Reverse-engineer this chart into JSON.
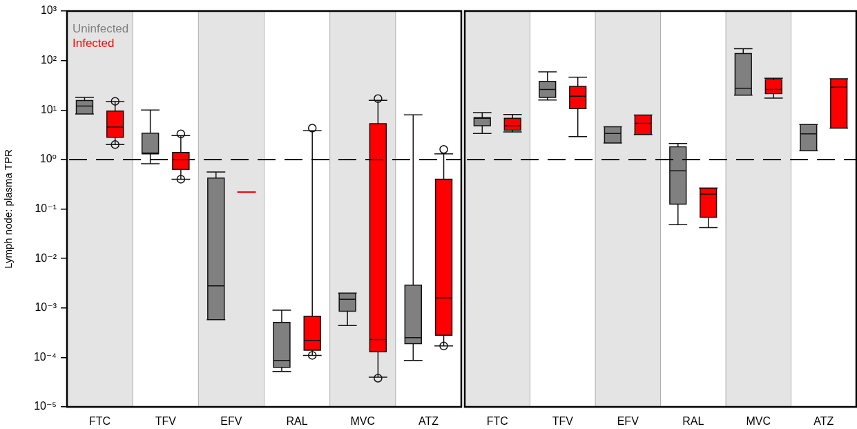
{
  "chart_data": [
    {
      "type": "box",
      "categories": [
        "FTC",
        "TFV",
        "EFV",
        "RAL",
        "MVC",
        "ATZ"
      ],
      "ylabel": "Lymph node: plasma TPR",
      "log": true,
      "ylim": [
        1e-05,
        1000
      ],
      "yticks": [
        {
          "value": 1e-05,
          "label": "10⁻⁵"
        },
        {
          "value": 0.0001,
          "label": "10⁻⁴"
        },
        {
          "value": 0.001,
          "label": "10⁻³"
        },
        {
          "value": 0.01,
          "label": "10⁻²"
        },
        {
          "value": 0.1,
          "label": "10⁻¹"
        },
        {
          "value": 1,
          "label": "10⁰"
        },
        {
          "value": 10,
          "label": "10¹"
        },
        {
          "value": 100,
          "label": "10²"
        },
        {
          "value": 1000,
          "label": "10³"
        }
      ],
      "legend": "top left",
      "ref_lines": [
        {
          "axis": "y",
          "value": 1,
          "line_style": "dashed",
          "color": "#000000"
        }
      ],
      "bands": [
        {
          "axis": "x",
          "from": "FTC",
          "to": "FTC",
          "color": "#e4e4e4"
        },
        {
          "axis": "x",
          "from": "EFV",
          "to": "EFV",
          "color": "#e4e4e4"
        },
        {
          "axis": "x",
          "from": "MVC",
          "to": "MVC",
          "color": "#e4e4e4"
        }
      ],
      "series": [
        {
          "name": "Uninfected",
          "color": "#808080",
          "boxes": [
            {
              "low": 8.3,
              "q1": 8.3,
              "median": 12,
              "q3": 15.5,
              "high": 18
            },
            {
              "low": 0.82,
              "q1": 1.3,
              "median": 1.35,
              "q3": 3.4,
              "high": 10
            },
            {
              "low": 0.00058,
              "q1": 0.00058,
              "median": 0.0028,
              "q3": 0.42,
              "high": 0.56
            },
            {
              "low": 5.2e-05,
              "q1": 6.3e-05,
              "median": 8.7e-05,
              "q3": 0.00051,
              "high": 0.0009
            },
            {
              "low": 0.00044,
              "q1": 0.00086,
              "median": 0.0015,
              "q3": 0.002,
              "high": 0.002
            },
            {
              "low": 8.7e-05,
              "q1": 0.00019,
              "median": 0.00025,
              "q3": 0.0029,
              "high": 8
            }
          ]
        },
        {
          "name": "Infected",
          "color": "#ff0000",
          "boxes": [
            {
              "low": 2,
              "q1": 2.8,
              "median": 4.5,
              "q3": 9.5,
              "high": 14.8,
              "outliers": [
                2,
                15
              ]
            },
            {
              "low": 0.4,
              "q1": 0.63,
              "median": 1,
              "q3": 1.38,
              "high": 3.05,
              "outliers": [
                0.4,
                3.3
              ]
            },
            {
              "low": 0.22,
              "q1": 0.22,
              "median": 0.22,
              "q3": 0.22,
              "high": 0.22
            },
            {
              "low": 0.00011,
              "q1": 0.00014,
              "median": 0.00022,
              "q3": 0.00068,
              "high": 3.8,
              "outliers": [
                0.00011,
                4.3
              ]
            },
            {
              "low": 4e-05,
              "q1": 0.00013,
              "median": 0.00023,
              "q3": 5.3,
              "high": 15.7,
              "outliers": [
                3.8e-05,
                17
              ]
            },
            {
              "low": 0.00017,
              "q1": 0.00028,
              "median": 0.0016,
              "q3": 0.4,
              "high": 1.3,
              "outliers": [
                0.00017,
                1.6
              ]
            }
          ]
        }
      ]
    },
    {
      "type": "box",
      "categories": [
        "FTC",
        "TFV",
        "EFV",
        "RAL",
        "MVC",
        "ATZ"
      ],
      "log": true,
      "ylim": [
        1e-05,
        1000
      ],
      "tick_labels": "x",
      "ref_lines": [
        {
          "axis": "y",
          "value": 1,
          "line_style": "dashed",
          "color": "#000000"
        }
      ],
      "bands": [
        {
          "axis": "x",
          "from": "FTC",
          "to": "FTC",
          "color": "#e4e4e4"
        },
        {
          "axis": "x",
          "from": "EFV",
          "to": "EFV",
          "color": "#e4e4e4"
        },
        {
          "axis": "x",
          "from": "MVC",
          "to": "MVC",
          "color": "#e4e4e4"
        }
      ],
      "series": [
        {
          "color": "#808080",
          "boxes": [
            {
              "low": 3.35,
              "q1": 4.8,
              "median": 6.8,
              "q3": 7,
              "high": 8.9
            },
            {
              "low": 16,
              "q1": 18,
              "median": 26,
              "q3": 38,
              "high": 59
            },
            {
              "low": 2.15,
              "q1": 2.15,
              "median": 3.35,
              "q3": 4.6,
              "high": 4.6
            },
            {
              "low": 0.048,
              "q1": 0.125,
              "median": 0.59,
              "q3": 1.8,
              "high": 2.1
            },
            {
              "low": 20,
              "q1": 20,
              "median": 27.5,
              "q3": 138,
              "high": 173
            },
            {
              "low": 1.5,
              "q1": 1.5,
              "median": 3.3,
              "q3": 5.1,
              "high": 5.1
            }
          ]
        },
        {
          "color": "#ff0000",
          "boxes": [
            {
              "low": 3.6,
              "q1": 3.9,
              "median": 4.8,
              "q3": 6.8,
              "high": 8.1
            },
            {
              "low": 2.9,
              "q1": 10.7,
              "median": 19,
              "q3": 30,
              "high": 46
            },
            {
              "low": 3.2,
              "q1": 3.2,
              "median": 5.4,
              "q3": 7.9,
              "high": 7.9
            },
            {
              "low": 0.042,
              "q1": 0.068,
              "median": 0.2,
              "q3": 0.265,
              "high": 0.265
            },
            {
              "low": 17.4,
              "q1": 21.5,
              "median": 26,
              "q3": 41,
              "high": 44
            },
            {
              "low": 4.3,
              "q1": 4.3,
              "median": 29,
              "q3": 43,
              "high": 43
            }
          ]
        }
      ]
    }
  ]
}
